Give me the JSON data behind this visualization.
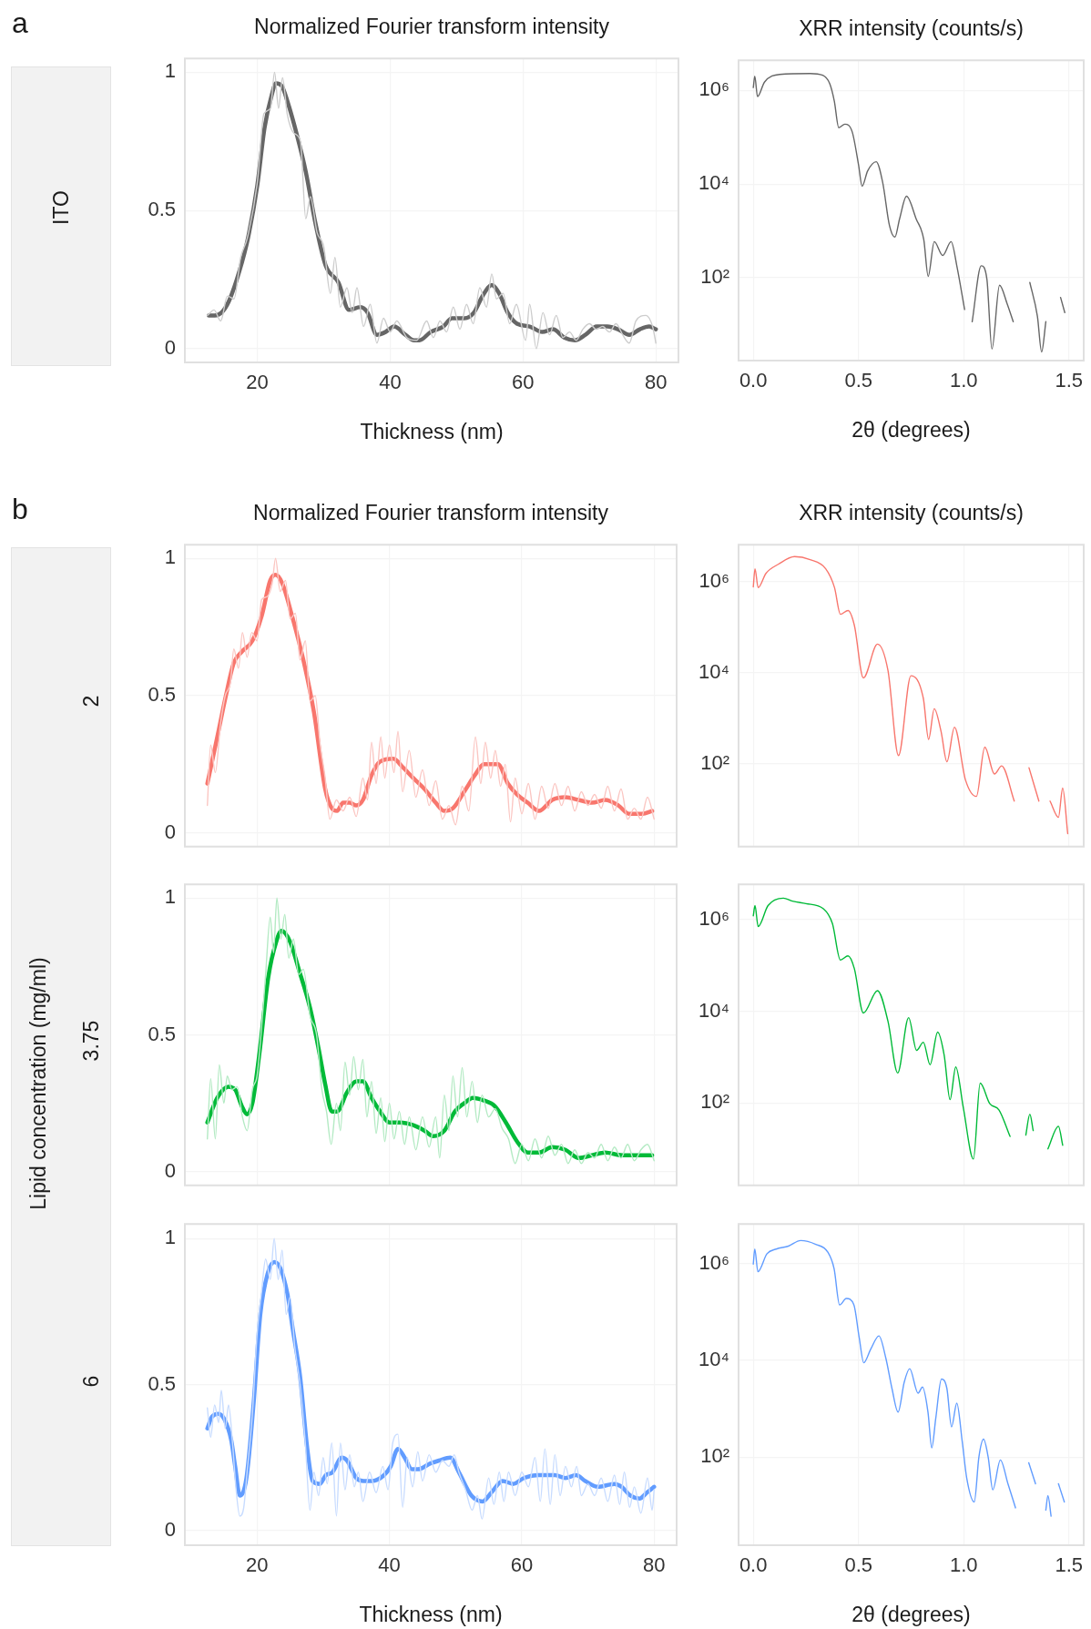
{
  "chart_data": [
    {
      "type": "line",
      "title": "Normalized Fourier transform intensity",
      "xlabel": "Thickness (nm)",
      "annotations": [
        "a",
        "ITO"
      ],
      "xlim": [
        9.1,
        83.4
      ],
      "ylim": [
        -0.05,
        1.05
      ],
      "xticks": [
        20,
        40,
        60,
        80
      ],
      "yticks": [
        0,
        0.5,
        1
      ],
      "grid": true,
      "series": [
        {
          "color": "#cccccc",
          "x": [
            12.5,
            13.5,
            14.5,
            15.5,
            16.5,
            17.5,
            18.5,
            20,
            21,
            22,
            22.6,
            23.2,
            23.8,
            24.5,
            25.5,
            26.5,
            27.3,
            28,
            29,
            30,
            31,
            31.7,
            32.5,
            33.5,
            34.3,
            35,
            36,
            37,
            38,
            39,
            40,
            41,
            42.5,
            44,
            45.5,
            46.5,
            47.5,
            48.5,
            49.5,
            50.5,
            51.5,
            52.5,
            53.5,
            54.5,
            55.3,
            56,
            57,
            58,
            59,
            60.4,
            61,
            62,
            63,
            64,
            65,
            66,
            67,
            68,
            69,
            70,
            71,
            72,
            73,
            74,
            75,
            76,
            77,
            78.5,
            79.5,
            80
          ],
          "values": [
            0.12,
            0.14,
            0.1,
            0.19,
            0.18,
            0.33,
            0.4,
            0.6,
            0.85,
            0.87,
            1.0,
            0.87,
            0.98,
            0.85,
            0.78,
            0.75,
            0.47,
            0.55,
            0.42,
            0.37,
            0.2,
            0.33,
            0.15,
            0.22,
            0.13,
            0.22,
            0.08,
            0.16,
            0.02,
            0.11,
            0.06,
            0.1,
            0.04,
            0.03,
            0.1,
            0.04,
            0.1,
            0.06,
            0.15,
            0.07,
            0.16,
            0.09,
            0.22,
            0.15,
            0.27,
            0.18,
            0.2,
            0.09,
            0.16,
            0.03,
            0.16,
            0.0,
            0.13,
            0.05,
            0.12,
            0.04,
            0.06,
            0.03,
            0.07,
            0.09,
            0.07,
            0.08,
            0.06,
            0.09,
            0.05,
            0.02,
            0.1,
            0.12,
            0.08,
            0.02
          ]
        },
        {
          "color": "#666666",
          "x": [
            12.7,
            13.6,
            14.6,
            15.7,
            17.3,
            18.6,
            20,
            21.1,
            22.2,
            22.8,
            23.7,
            24.6,
            26,
            27.3,
            28.7,
            30.3,
            32.2,
            33.8,
            35.5,
            36.6,
            38,
            39.3,
            40.6,
            42.3,
            43.6,
            44.4,
            46.1,
            48,
            49.3,
            51.2,
            52.6,
            53.9,
            55.3,
            56.4,
            57.7,
            59.1,
            61,
            62.9,
            64.5,
            66.2,
            67.8,
            69.4,
            71.1,
            72.7,
            74.3,
            76,
            77.6,
            79,
            80
          ],
          "values": [
            0.12,
            0.12,
            0.13,
            0.17,
            0.28,
            0.4,
            0.59,
            0.8,
            0.92,
            0.96,
            0.95,
            0.89,
            0.77,
            0.64,
            0.46,
            0.3,
            0.24,
            0.14,
            0.15,
            0.13,
            0.05,
            0.06,
            0.08,
            0.05,
            0.03,
            0.03,
            0.06,
            0.08,
            0.11,
            0.11,
            0.13,
            0.19,
            0.23,
            0.2,
            0.13,
            0.09,
            0.08,
            0.06,
            0.07,
            0.04,
            0.03,
            0.05,
            0.08,
            0.08,
            0.07,
            0.05,
            0.07,
            0.08,
            0.07
          ]
        }
      ]
    },
    {
      "type": "line",
      "title": "XRR intensity (counts/s)",
      "xlabel": "2θ (degrees)",
      "log": "y",
      "xlim": [
        -0.07,
        1.57
      ],
      "ylim": [
        1.7,
        4400000
      ],
      "xticks": [
        {
          "value": 0,
          "label": "0.0"
        },
        {
          "value": 0.5,
          "label": "0.5"
        },
        {
          "value": 1,
          "label": "1.0"
        },
        {
          "value": 1.5,
          "label": "1.5"
        }
      ],
      "yticks": [
        {
          "value": 100,
          "label": "10²"
        },
        {
          "value": 10000,
          "label": "10⁴"
        },
        {
          "value": 1000000,
          "label": "10⁶"
        }
      ],
      "grid": true,
      "series": [
        {
          "color": "#666666",
          "x": [
            0,
            0.007,
            0.02,
            0.053,
            0.125,
            0.27,
            0.33,
            0.363,
            0.385,
            0.406,
            0.435,
            0.47,
            0.5,
            0.517,
            0.543,
            0.584,
            0.615,
            0.647,
            0.673,
            0.695,
            0.728,
            0.774,
            0.81,
            0.831,
            0.86,
            0.9,
            0.94,
            0.968,
            1.004,
            1.02,
            1.04,
            1.083,
            1.11,
            1.134,
            1.17,
            1.206,
            1.235,
            1.27,
            1.314,
            1.35,
            1.37,
            1.39,
            1.43,
            1.46,
            1.48
          ],
          "values": [
            1150000,
            2000000,
            740000,
            1500000,
            2200000,
            2300000,
            2100000,
            1400000,
            590000,
            160000,
            190000,
            130000,
            26000,
            9000,
            19000,
            30000,
            10700,
            1300,
            740,
            1800,
            5500,
            1800,
            650,
            107,
            590,
            300,
            590,
            170,
            21,
            null,
            11.5,
            180,
            93,
            3,
            69,
            28,
            11.5,
            null,
            79,
            15,
            2.6,
            11.5,
            null,
            38,
            18
          ]
        }
      ]
    },
    {
      "type": "line",
      "title": "Normalized Fourier transform intensity",
      "annotations": [
        "b",
        "2"
      ],
      "tick_labels": "y",
      "xlim": [
        9.1,
        83.4
      ],
      "ylim": [
        -0.05,
        1.05
      ],
      "xticks": [
        20,
        40,
        60,
        80
      ],
      "yticks": [
        0,
        0.5,
        1
      ],
      "grid": true,
      "series": [
        {
          "color": "#fbc6c2",
          "x": [
            12.5,
            13,
            13.7,
            14.5,
            15.2,
            16,
            16.5,
            17.2,
            17.8,
            18.5,
            19.2,
            20,
            20.7,
            21.5,
            22.3,
            22.8,
            23.5,
            24.3,
            25,
            25.8,
            26.5,
            27.3,
            28,
            28.8,
            29.5,
            30.3,
            31,
            32,
            33,
            34,
            35,
            36,
            36.7,
            37.3,
            38,
            38.7,
            39.3,
            40,
            40.7,
            41.3,
            42,
            43,
            44,
            45,
            46,
            47,
            48,
            49,
            50,
            51,
            52,
            53,
            53.8,
            54.5,
            55.3,
            56,
            56.8,
            57.5,
            58.3,
            59,
            60,
            61,
            62,
            63,
            64,
            65,
            66,
            67,
            68,
            69,
            70,
            71,
            72,
            73,
            74,
            75,
            76,
            77,
            78,
            79,
            80
          ],
          "values": [
            0.1,
            0.32,
            0.22,
            0.4,
            0.5,
            0.55,
            0.67,
            0.6,
            0.73,
            0.64,
            0.73,
            0.7,
            0.85,
            0.86,
            0.91,
            1.0,
            0.88,
            0.92,
            0.78,
            0.8,
            0.63,
            0.7,
            0.48,
            0.5,
            0.33,
            0.2,
            0.05,
            0.12,
            0.08,
            0.13,
            0.06,
            0.2,
            0.12,
            0.33,
            0.18,
            0.35,
            0.2,
            0.32,
            0.22,
            0.37,
            0.15,
            0.3,
            0.13,
            0.23,
            0.1,
            0.19,
            0.05,
            0.1,
            0.03,
            0.17,
            0.08,
            0.35,
            0.18,
            0.33,
            0.2,
            0.3,
            0.17,
            0.25,
            0.04,
            0.2,
            0.07,
            0.18,
            0.05,
            0.17,
            0.09,
            0.18,
            0.1,
            0.17,
            0.08,
            0.15,
            0.1,
            0.14,
            0.09,
            0.17,
            0.08,
            0.16,
            0.05,
            0.09,
            0.05,
            0.13,
            0.05
          ]
        },
        {
          "color": "#f8766d",
          "x": [
            12.5,
            14,
            15.3,
            16.5,
            17.7,
            19.3,
            20.7,
            22,
            22.8,
            23.8,
            25.3,
            27,
            28.6,
            30.3,
            31.3,
            32.1,
            33,
            34,
            35,
            36,
            37.3,
            38.6,
            40.6,
            42,
            43.6,
            45.3,
            47,
            48.3,
            49.6,
            51.3,
            52.9,
            54.3,
            56.4,
            57.9,
            59.3,
            60.9,
            62.6,
            64.6,
            66.6,
            68.6,
            70.6,
            72.6,
            74.6,
            76.2,
            78.2,
            79.7
          ],
          "values": [
            0.18,
            0.35,
            0.5,
            0.62,
            0.66,
            0.7,
            0.79,
            0.92,
            0.94,
            0.91,
            0.79,
            0.63,
            0.44,
            0.16,
            0.09,
            0.08,
            0.11,
            0.11,
            0.1,
            0.12,
            0.21,
            0.26,
            0.27,
            0.24,
            0.2,
            0.16,
            0.11,
            0.08,
            0.09,
            0.15,
            0.21,
            0.25,
            0.25,
            0.18,
            0.14,
            0.11,
            0.08,
            0.12,
            0.13,
            0.12,
            0.11,
            0.12,
            0.1,
            0.07,
            0.07,
            0.08
          ]
        }
      ]
    },
    {
      "type": "line",
      "title": "XRR intensity (counts/s)",
      "tick_labels": "y",
      "log": "y",
      "xlim": [
        -0.07,
        1.57
      ],
      "ylim": [
        1.5,
        6400000
      ],
      "xticks": [
        0,
        0.5,
        1,
        1.5
      ],
      "yticks": [
        {
          "value": 100,
          "label": "10²"
        },
        {
          "value": 10000,
          "label": "10⁴"
        },
        {
          "value": 1000000,
          "label": "10⁶"
        }
      ],
      "grid": true,
      "series": [
        {
          "color": "#f8766d",
          "x": [
            0,
            0.008,
            0.023,
            0.06,
            0.12,
            0.196,
            0.27,
            0.344,
            0.386,
            0.414,
            0.45,
            0.48,
            0.523,
            0.59,
            0.64,
            0.69,
            0.749,
            0.808,
            0.833,
            0.86,
            0.892,
            0.92,
            0.956,
            1.008,
            1.06,
            1.1,
            1.146,
            1.18,
            1.24,
            1.28,
            1.31,
            1.357,
            1.37,
            1.41,
            1.45,
            1.47,
            1.494
          ],
          "values": [
            760000,
            1900000,
            730000,
            1500000,
            2400000,
            3500000,
            3000000,
            1900000,
            730000,
            190000,
            230000,
            110000,
            7600,
            42000,
            11000,
            150,
            8500,
            2700,
            340,
            1600,
            510,
            110,
            630,
            44,
            19,
            230,
            59,
            89,
            15,
            null,
            81,
            15,
            null,
            15,
            6.6,
            29,
            2.9
          ]
        }
      ]
    },
    {
      "type": "line",
      "ylabel": "Lipid concentration (mg/ml)",
      "annotations": [
        "3.75"
      ],
      "tick_labels": "y",
      "xlim": [
        9.1,
        83.4
      ],
      "ylim": [
        -0.05,
        1.05
      ],
      "xticks": [
        20,
        40,
        60,
        80
      ],
      "yticks": [
        0,
        0.5,
        1
      ],
      "grid": true,
      "series": [
        {
          "color": "#b3eac3",
          "x": [
            12.5,
            13,
            13.7,
            14.3,
            15,
            15.5,
            16.2,
            17,
            17.8,
            18.5,
            19.3,
            20,
            20.6,
            21.3,
            22,
            22.5,
            23,
            23.6,
            24.2,
            24.8,
            25.5,
            26.3,
            27,
            28,
            29,
            29.8,
            30.5,
            31.2,
            32,
            32.6,
            33.3,
            34,
            34.6,
            35.3,
            36,
            36.6,
            37.3,
            38,
            38.7,
            39.3,
            40,
            40.7,
            41.5,
            42.3,
            43,
            44,
            45,
            46,
            47,
            47.6,
            48.3,
            49,
            49.6,
            50.3,
            51,
            51.7,
            52.5,
            53.3,
            54,
            55,
            56,
            57,
            58,
            59,
            60,
            61,
            62,
            63,
            64,
            65,
            66,
            67,
            68,
            69,
            70,
            71,
            72,
            73,
            74,
            75,
            76,
            77,
            78,
            79,
            80
          ],
          "values": [
            0.12,
            0.34,
            0.12,
            0.39,
            0.25,
            0.35,
            0.3,
            0.31,
            0.2,
            0.15,
            0.3,
            0.35,
            0.5,
            0.72,
            0.93,
            0.8,
            1.0,
            0.85,
            0.94,
            0.78,
            0.85,
            0.72,
            0.74,
            0.57,
            0.5,
            0.3,
            0.22,
            0.1,
            0.25,
            0.15,
            0.4,
            0.28,
            0.42,
            0.3,
            0.41,
            0.2,
            0.33,
            0.14,
            0.27,
            0.11,
            0.25,
            0.12,
            0.22,
            0.1,
            0.2,
            0.08,
            0.2,
            0.09,
            0.2,
            0.05,
            0.28,
            0.15,
            0.35,
            0.2,
            0.38,
            0.2,
            0.33,
            0.18,
            0.28,
            0.2,
            0.23,
            0.16,
            0.12,
            0.03,
            0.1,
            0.04,
            0.12,
            0.05,
            0.13,
            0.06,
            0.1,
            0.03,
            0.08,
            0.03,
            0.07,
            0.05,
            0.1,
            0.04,
            0.09,
            0.05,
            0.1,
            0.04,
            0.08,
            0.1,
            0.04
          ]
        },
        {
          "color": "#00ba38",
          "x": [
            12.5,
            14,
            15.7,
            16.7,
            17.7,
            18.5,
            19.3,
            20.3,
            21.7,
            22.9,
            23.7,
            25,
            26.3,
            28,
            29.3,
            30.3,
            31.3,
            32.1,
            33.6,
            35,
            36,
            37.3,
            38.6,
            40,
            41.6,
            43.6,
            45.3,
            46.6,
            48.3,
            49.9,
            51.3,
            52.6,
            54.3,
            55.9,
            57.6,
            59.3,
            60.9,
            62.6,
            64.6,
            66.6,
            68.6,
            70.6,
            72.6,
            75.2,
            77.5,
            79.7
          ],
          "values": [
            0.18,
            0.27,
            0.31,
            0.3,
            0.24,
            0.21,
            0.25,
            0.42,
            0.71,
            0.84,
            0.88,
            0.84,
            0.74,
            0.6,
            0.45,
            0.32,
            0.22,
            0.22,
            0.29,
            0.33,
            0.33,
            0.27,
            0.22,
            0.18,
            0.18,
            0.17,
            0.15,
            0.13,
            0.15,
            0.22,
            0.25,
            0.27,
            0.26,
            0.24,
            0.18,
            0.11,
            0.07,
            0.07,
            0.09,
            0.08,
            0.05,
            0.06,
            0.07,
            0.06,
            0.06,
            0.06
          ]
        }
      ]
    },
    {
      "type": "line",
      "tick_labels": "y",
      "log": "y",
      "xlim": [
        -0.07,
        1.57
      ],
      "ylim": [
        1.6,
        5800000
      ],
      "xticks": [
        0,
        0.5,
        1,
        1.5
      ],
      "yticks": [
        {
          "value": 100,
          "label": "10²"
        },
        {
          "value": 10000,
          "label": "10⁴"
        },
        {
          "value": 1000000,
          "label": "10⁶"
        }
      ],
      "grid": true,
      "series": [
        {
          "color": "#00ba38",
          "x": [
            0,
            0.008,
            0.023,
            0.07,
            0.143,
            0.186,
            0.25,
            0.333,
            0.376,
            0.414,
            0.45,
            0.48,
            0.523,
            0.59,
            0.64,
            0.686,
            0.738,
            0.776,
            0.808,
            0.84,
            0.876,
            0.907,
            0.935,
            0.962,
            0.998,
            1.046,
            1.078,
            1.124,
            1.167,
            1.22,
            1.27,
            1.295,
            1.314,
            1.33,
            1.35,
            1.4,
            1.45,
            1.47
          ],
          "values": [
            1200000,
            2000000,
            700000,
            2000000,
            2900000,
            2500000,
            2200000,
            1700000,
            810000,
            130000,
            160000,
            85000,
            9100,
            28000,
            6000,
            450,
            7200,
            1400,
            2100,
            680,
            3500,
            1100,
            118,
            610,
            78,
            6,
            270,
            96,
            71,
            18.6,
            null,
            20,
            57,
            25,
            null,
            10,
            31,
            12
          ]
        }
      ]
    },
    {
      "type": "line",
      "xlabel": "Thickness (nm)",
      "annotations": [
        "6"
      ],
      "xlim": [
        9.1,
        83.4
      ],
      "ylim": [
        -0.05,
        1.05
      ],
      "xticks": [
        20,
        40,
        60,
        80
      ],
      "yticks": [
        0,
        0.5,
        1
      ],
      "grid": true,
      "series": [
        {
          "color": "#c8dcff",
          "x": [
            12.5,
            13,
            13.6,
            14.2,
            14.6,
            15.2,
            15.7,
            16.3,
            16.8,
            17.4,
            18,
            18.5,
            19.3,
            20,
            20.7,
            21.3,
            22,
            22.6,
            23.2,
            23.8,
            24.4,
            25,
            25.7,
            26.5,
            27.3,
            28,
            28.6,
            29.3,
            30,
            30.6,
            31.3,
            32,
            32.6,
            33.3,
            34,
            34.7,
            35.3,
            36,
            37,
            38,
            39,
            39.8,
            40.5,
            41.3,
            42,
            42.7,
            43.5,
            44.3,
            45,
            46,
            47,
            48,
            49,
            49.8,
            50.5,
            51.5,
            52.5,
            53.3,
            54,
            55,
            55.8,
            56.6,
            57.3,
            58,
            59,
            60,
            61,
            62,
            62.8,
            63.5,
            64.3,
            65,
            65.8,
            66.6,
            67.5,
            68.3,
            69,
            70,
            71,
            72,
            73,
            74,
            74.8,
            75.5,
            76.3,
            77,
            78,
            79,
            79.7,
            80
          ],
          "values": [
            0.42,
            0.32,
            0.43,
            0.37,
            0.48,
            0.35,
            0.43,
            0.3,
            0.15,
            0.05,
            0.08,
            0.2,
            0.4,
            0.67,
            0.82,
            0.93,
            0.86,
            1.0,
            0.86,
            0.96,
            0.74,
            0.8,
            0.63,
            0.5,
            0.3,
            0.07,
            0.2,
            0.12,
            0.25,
            0.16,
            0.3,
            0.05,
            0.3,
            0.14,
            0.26,
            0.15,
            0.2,
            0.1,
            0.2,
            0.13,
            0.22,
            0.14,
            0.3,
            0.33,
            0.08,
            0.25,
            0.15,
            0.27,
            0.17,
            0.26,
            0.2,
            0.24,
            0.22,
            0.26,
            0.2,
            0.14,
            0.07,
            0.12,
            0.04,
            0.18,
            0.09,
            0.2,
            0.1,
            0.2,
            0.12,
            0.2,
            0.15,
            0.25,
            0.1,
            0.28,
            0.09,
            0.26,
            0.12,
            0.22,
            0.15,
            0.22,
            0.12,
            0.16,
            0.12,
            0.18,
            0.1,
            0.19,
            0.09,
            0.2,
            0.08,
            0.15,
            0.06,
            0.18,
            0.07,
            0.14
          ]
        },
        {
          "color": "#619cff",
          "x": [
            12.5,
            13.2,
            14.2,
            15.1,
            16.1,
            16.7,
            17.4,
            18.4,
            19.5,
            20.5,
            21.6,
            22.6,
            23.5,
            24.6,
            25.4,
            26.5,
            27.6,
            28.4,
            29.5,
            30.4,
            31.4,
            32.8,
            33.6,
            35,
            36.1,
            37.4,
            39.2,
            40.2,
            41.3,
            42.3,
            43.4,
            44.3,
            46.2,
            47.5,
            49.2,
            50.5,
            52.4,
            54.1,
            55.4,
            57.1,
            58.7,
            60.3,
            62.5,
            65,
            66.6,
            68.2,
            69.6,
            71.5,
            74,
            75.1,
            76.4,
            77.8,
            78.9,
            80
          ],
          "values": [
            0.35,
            0.39,
            0.4,
            0.38,
            0.31,
            0.22,
            0.12,
            0.18,
            0.44,
            0.74,
            0.88,
            0.92,
            0.9,
            0.81,
            0.69,
            0.53,
            0.28,
            0.17,
            0.16,
            0.19,
            0.2,
            0.25,
            0.24,
            0.18,
            0.17,
            0.17,
            0.19,
            0.22,
            0.28,
            0.25,
            0.21,
            0.21,
            0.23,
            0.24,
            0.25,
            0.2,
            0.12,
            0.1,
            0.13,
            0.17,
            0.16,
            0.18,
            0.19,
            0.19,
            0.18,
            0.19,
            0.17,
            0.15,
            0.16,
            0.15,
            0.12,
            0.11,
            0.13,
            0.15
          ]
        }
      ]
    },
    {
      "type": "line",
      "xlabel": "2θ (degrees)",
      "log": "y",
      "xlim": [
        -0.07,
        1.57
      ],
      "ylim": [
        1.5,
        6600000
      ],
      "xticks": [
        {
          "value": 0,
          "label": "0.0"
        },
        {
          "value": 0.5,
          "label": "0.5"
        },
        {
          "value": 1,
          "label": "1.0"
        },
        {
          "value": 1.5,
          "label": "1.5"
        }
      ],
      "yticks": [
        {
          "value": 100,
          "label": "10²"
        },
        {
          "value": 10000,
          "label": "10⁴"
        },
        {
          "value": 1000000,
          "label": "10⁶"
        }
      ],
      "grid": true,
      "series": [
        {
          "color": "#619cff",
          "x": [
            0,
            0.007,
            0.022,
            0.065,
            0.109,
            0.167,
            0.225,
            0.297,
            0.355,
            0.384,
            0.41,
            0.442,
            0.478,
            0.503,
            0.525,
            0.558,
            0.597,
            0.63,
            0.659,
            0.688,
            0.717,
            0.743,
            0.783,
            0.804,
            0.83,
            0.848,
            0.867,
            0.894,
            0.92,
            0.942,
            0.967,
            0.993,
            1.014,
            1.05,
            1.072,
            1.094,
            1.116,
            1.138,
            1.174,
            1.21,
            1.246,
            1.275,
            1.309,
            1.341,
            1.38,
            1.39,
            1.4,
            1.415,
            1.435,
            1.45,
            1.478
          ],
          "values": [
            980000,
            2000000,
            680000,
            1600000,
            2000000,
            2300000,
            3000000,
            2500000,
            1700000,
            780000,
            140000,
            190000,
            140000,
            30000,
            8900,
            17000,
            32000,
            11000,
            2600,
            850,
            3500,
            6700,
            2100,
            2800,
            850,
            155,
            630,
            4100,
            2600,
            420,
            1300,
            204,
            37,
            11.8,
            100,
            234,
            100,
            21,
            87,
            28,
            8.9,
            null,
            76,
            28,
            null,
            8,
            16,
            6,
            null,
            28,
            11.8
          ]
        }
      ]
    }
  ]
}
